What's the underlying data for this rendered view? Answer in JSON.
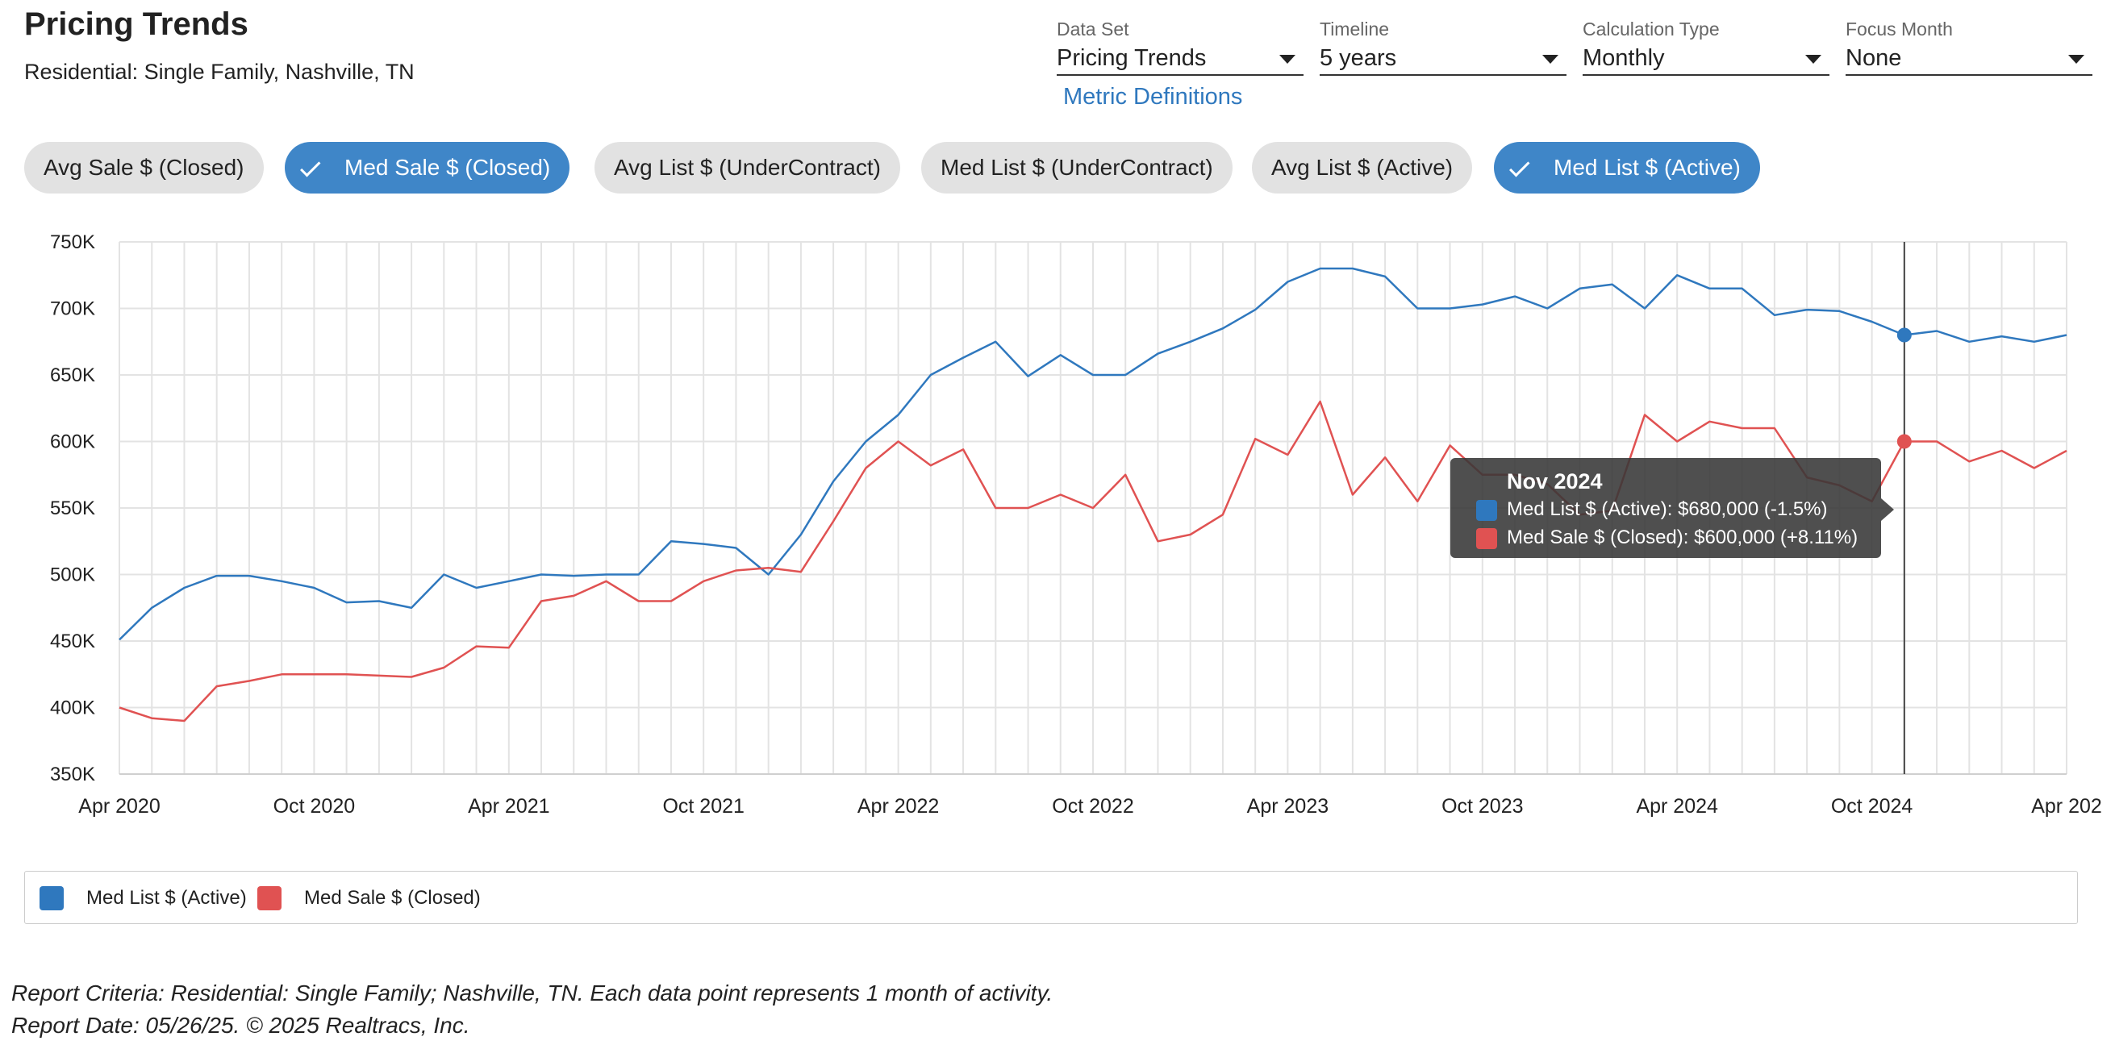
{
  "header": {
    "title": "Pricing Trends",
    "subtitle": "Residential: Single Family, Nashville, TN"
  },
  "controls": [
    {
      "label": "Data Set",
      "value": "Pricing Trends"
    },
    {
      "label": "Timeline",
      "value": "5 years"
    },
    {
      "label": "Calculation Type",
      "value": "Monthly"
    },
    {
      "label": "Focus Month",
      "value": "None"
    }
  ],
  "metric_link": "Metric Definitions",
  "chips": [
    {
      "label": "Avg Sale $ (Closed)",
      "active": false
    },
    {
      "label": "Med Sale $ (Closed)",
      "active": true
    },
    {
      "label": "Avg List $ (UnderContract)",
      "active": false
    },
    {
      "label": "Med List $ (UnderContract)",
      "active": false
    },
    {
      "label": "Avg List $ (Active)",
      "active": false
    },
    {
      "label": "Med List $ (Active)",
      "active": true
    }
  ],
  "tooltip": {
    "title": "Nov 2024",
    "rows": [
      {
        "text": "Med List $ (Active): $680,000 (-1.5%)",
        "color": "#2f78be"
      },
      {
        "text": "Med Sale $ (Closed): $600,000 (+8.11%)",
        "color": "#e05252"
      }
    ]
  },
  "legend": [
    {
      "label": "Med List $ (Active)",
      "color": "#2f78be"
    },
    {
      "label": "Med Sale $ (Closed)",
      "color": "#e05252"
    }
  ],
  "footer": {
    "criteria": "Report Criteria: Residential: Single Family; Nashville, TN. Each data point represents 1 month of activity.",
    "date": "Report Date: 05/26/25. © 2025 Realtracs, Inc."
  },
  "chart_data": {
    "type": "line",
    "x_start": "Apr 2020",
    "x_end": "May 2025",
    "y_ticks": [
      "750K",
      "700K",
      "650K",
      "600K",
      "550K",
      "500K",
      "450K",
      "400K",
      "350K"
    ],
    "ylim": [
      350000,
      750000
    ],
    "x_ticks": [
      "Apr 2020",
      "Oct 2020",
      "Apr 2021",
      "Oct 2021",
      "Apr 2022",
      "Oct 2022",
      "Apr 2023",
      "Oct 2023",
      "Apr 2024",
      "Oct 2024",
      "Apr 202"
    ],
    "grid": true,
    "highlight_month": "Nov 2024",
    "series": [
      {
        "name": "Med List $ (Active)",
        "color": "#2f78be",
        "values": [
          451000,
          475000,
          490000,
          499000,
          499000,
          495000,
          490000,
          479000,
          480000,
          475000,
          500000,
          490000,
          495000,
          500000,
          499000,
          500000,
          500000,
          525000,
          523000,
          520000,
          500000,
          530000,
          570000,
          600000,
          620000,
          650000,
          663000,
          675000,
          649000,
          665000,
          650000,
          650000,
          666000,
          675000,
          685000,
          699000,
          720000,
          730000,
          730000,
          724000,
          700000,
          700000,
          703000,
          709000,
          700000,
          715000,
          718000,
          700000,
          725000,
          715000,
          715000,
          695000,
          699000,
          698000,
          690000,
          680000,
          683000,
          675000,
          679000,
          675000,
          680000
        ]
      },
      {
        "name": "Med Sale $ (Closed)",
        "color": "#e05252",
        "values": [
          400000,
          392000,
          390000,
          416000,
          420000,
          425000,
          425000,
          425000,
          424000,
          423000,
          430000,
          446000,
          445000,
          480000,
          484000,
          495000,
          480000,
          480000,
          495000,
          503000,
          505000,
          502000,
          540000,
          580000,
          600000,
          582000,
          594000,
          550000,
          550000,
          560000,
          550000,
          575000,
          525000,
          530000,
          545000,
          602000,
          590000,
          630000,
          560000,
          588000,
          555000,
          597000,
          575000,
          575000,
          568000,
          545000,
          548000,
          620000,
          600000,
          615000,
          610000,
          610000,
          573000,
          567000,
          555000,
          600000,
          600000,
          585000,
          593000,
          580000,
          593000
        ]
      }
    ]
  }
}
